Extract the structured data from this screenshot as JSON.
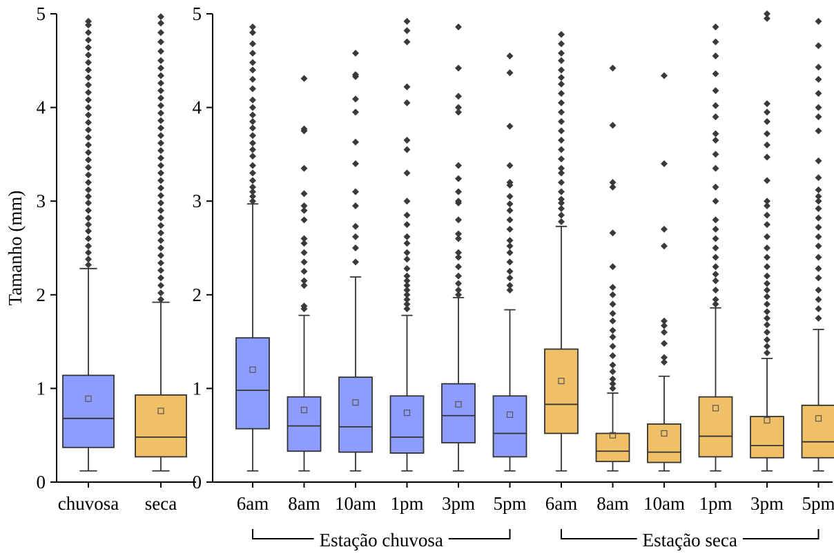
{
  "chart_data": [
    {
      "type": "box",
      "ylabel": "Tamanho (mm)",
      "ylim": [
        0,
        5
      ],
      "yticks": [
        0,
        1,
        2,
        3,
        4,
        5
      ],
      "categories": [
        "chuvosa",
        "seca"
      ],
      "boxes": [
        {
          "label": "chuvosa",
          "color": "#8c9cff",
          "whisker_low": 0.12,
          "q1": 0.37,
          "median": 0.68,
          "q3": 1.14,
          "whisker_high": 2.28,
          "mean": 0.89,
          "outliers": [
            2.32,
            2.38,
            2.45,
            2.52,
            2.6,
            2.68,
            2.75,
            2.82,
            2.9,
            2.98,
            3.05,
            3.12,
            3.2,
            3.28,
            3.36,
            3.44,
            3.52,
            3.6,
            3.68,
            3.76,
            3.84,
            3.92,
            4.0,
            4.08,
            4.16,
            4.24,
            4.32,
            4.4,
            4.48,
            4.56,
            4.64,
            4.72,
            4.8,
            4.88,
            4.92
          ]
        },
        {
          "label": "seca",
          "color": "#f0c066",
          "whisker_low": 0.12,
          "q1": 0.27,
          "median": 0.48,
          "q3": 0.93,
          "whisker_high": 1.92,
          "mean": 0.76,
          "outliers": [
            1.95,
            2.02,
            2.1,
            2.18,
            2.26,
            2.34,
            2.42,
            2.5,
            2.58,
            2.66,
            2.74,
            2.82,
            2.9,
            2.98,
            3.06,
            3.14,
            3.22,
            3.3,
            3.38,
            3.46,
            3.54,
            3.62,
            3.7,
            3.78,
            3.86,
            3.94,
            4.02,
            4.1,
            4.18,
            4.26,
            4.34,
            4.42,
            4.5,
            4.6,
            4.7,
            4.8,
            4.9,
            4.97
          ]
        }
      ]
    },
    {
      "type": "box",
      "ylim": [
        0,
        5
      ],
      "yticks": [
        0,
        1,
        2,
        3,
        4,
        5
      ],
      "categories": [
        "6am",
        "8am",
        "10am",
        "1pm",
        "3pm",
        "5pm",
        "6am",
        "8am",
        "10am",
        "1pm",
        "3pm",
        "5pm"
      ],
      "groups": [
        {
          "label": "Estação chuvosa",
          "from": 0,
          "to": 5
        },
        {
          "label": "Estação seca",
          "from": 6,
          "to": 11
        }
      ],
      "boxes": [
        {
          "label": "6am",
          "color": "#8c9cff",
          "whisker_low": 0.12,
          "q1": 0.57,
          "median": 0.98,
          "q3": 1.54,
          "whisker_high": 2.97,
          "mean": 1.2,
          "outliers": [
            3.0,
            3.05,
            3.1,
            3.15,
            3.22,
            3.3,
            3.38,
            3.48,
            3.55,
            3.62,
            3.7,
            3.78,
            3.85,
            3.92,
            4.0,
            4.08,
            4.2,
            4.3,
            4.4,
            4.48,
            4.58,
            4.68,
            4.8,
            4.86
          ]
        },
        {
          "label": "8am",
          "color": "#8c9cff",
          "whisker_low": 0.12,
          "q1": 0.33,
          "median": 0.6,
          "q3": 0.91,
          "whisker_high": 1.78,
          "mean": 0.77,
          "outliers": [
            1.85,
            1.88,
            2.1,
            2.15,
            2.25,
            2.35,
            2.45,
            2.55,
            2.6,
            2.8,
            2.9,
            2.95,
            3.08,
            3.35,
            3.75,
            3.77,
            4.31
          ]
        },
        {
          "label": "10am",
          "color": "#8c9cff",
          "whisker_low": 0.12,
          "q1": 0.32,
          "median": 0.59,
          "q3": 1.12,
          "whisker_high": 2.19,
          "mean": 0.85,
          "outliers": [
            2.35,
            2.5,
            2.62,
            2.73,
            2.95,
            3.1,
            3.4,
            3.63,
            3.95,
            4.09,
            4.33,
            4.35,
            4.58
          ]
        },
        {
          "label": "1pm",
          "color": "#8c9cff",
          "whisker_low": 0.12,
          "q1": 0.31,
          "median": 0.48,
          "q3": 0.92,
          "whisker_high": 1.78,
          "mean": 0.74,
          "outliers": [
            1.85,
            1.9,
            1.95,
            2.0,
            2.05,
            2.1,
            2.15,
            2.2,
            2.28,
            2.38,
            2.45,
            2.55,
            2.62,
            2.75,
            2.85,
            3.0,
            3.3,
            3.55,
            3.65,
            4.05,
            4.22,
            4.7,
            4.82,
            4.92
          ]
        },
        {
          "label": "3pm",
          "color": "#8c9cff",
          "whisker_low": 0.12,
          "q1": 0.42,
          "median": 0.71,
          "q3": 1.05,
          "whisker_high": 1.97,
          "mean": 0.83,
          "outliers": [
            2.0,
            2.05,
            2.12,
            2.2,
            2.3,
            2.4,
            2.45,
            2.6,
            2.65,
            2.8,
            2.98,
            3.0,
            3.1,
            3.24,
            3.38,
            3.95,
            4.0,
            4.12,
            4.42,
            4.86
          ]
        },
        {
          "label": "5pm",
          "color": "#8c9cff",
          "whisker_low": 0.12,
          "q1": 0.27,
          "median": 0.52,
          "q3": 0.92,
          "whisker_high": 1.84,
          "mean": 0.72,
          "outliers": [
            2.05,
            2.1,
            2.18,
            2.25,
            2.35,
            2.45,
            2.52,
            2.58,
            2.7,
            2.8,
            2.9,
            2.97,
            3.05,
            3.17,
            3.2,
            3.38,
            3.8,
            4.37,
            4.55
          ]
        },
        {
          "label": "6am",
          "color": "#f0c066",
          "whisker_low": 0.12,
          "q1": 0.52,
          "median": 0.83,
          "q3": 1.42,
          "whisker_high": 2.73,
          "mean": 1.08,
          "outliers": [
            2.78,
            2.85,
            2.92,
            2.98,
            3.02,
            3.1,
            3.2,
            3.3,
            3.35,
            3.45,
            3.55,
            3.65,
            3.75,
            3.85,
            3.95,
            4.05,
            4.15,
            4.25,
            4.32,
            4.4,
            4.5,
            4.58,
            4.68,
            4.78
          ]
        },
        {
          "label": "8am",
          "color": "#f0c066",
          "whisker_low": 0.12,
          "q1": 0.22,
          "median": 0.33,
          "q3": 0.52,
          "whisker_high": 0.95,
          "mean": 0.5,
          "outliers": [
            1.0,
            1.05,
            1.1,
            1.18,
            1.25,
            1.35,
            1.45,
            1.55,
            1.62,
            1.72,
            1.8,
            1.9,
            2.0,
            2.08,
            2.3,
            2.66,
            3.15,
            3.2,
            3.81,
            4.42
          ]
        },
        {
          "label": "10am",
          "color": "#f0c066",
          "whisker_low": 0.12,
          "q1": 0.21,
          "median": 0.32,
          "q3": 0.62,
          "whisker_high": 1.13,
          "mean": 0.52,
          "outliers": [
            1.28,
            1.33,
            1.48,
            1.6,
            1.67,
            1.72,
            2.52,
            2.7,
            3.4,
            4.34
          ]
        },
        {
          "label": "1pm",
          "color": "#f0c066",
          "whisker_low": 0.12,
          "q1": 0.27,
          "median": 0.49,
          "q3": 0.91,
          "whisker_high": 1.86,
          "mean": 0.79,
          "outliers": [
            1.9,
            1.95,
            2.05,
            2.15,
            2.22,
            2.3,
            2.4,
            2.5,
            2.6,
            2.7,
            2.8,
            3.0,
            3.15,
            3.35,
            3.5,
            3.65,
            3.72,
            3.9,
            4.02,
            4.18,
            4.36,
            4.55,
            4.7,
            4.86
          ]
        },
        {
          "label": "3pm",
          "color": "#f0c066",
          "whisker_low": 0.12,
          "q1": 0.26,
          "median": 0.39,
          "q3": 0.7,
          "whisker_high": 1.32,
          "mean": 0.66,
          "outliers": [
            1.38,
            1.45,
            1.52,
            1.6,
            1.68,
            1.75,
            1.82,
            1.9,
            1.98,
            2.05,
            2.12,
            2.2,
            2.3,
            2.4,
            2.5,
            2.62,
            2.75,
            2.85,
            2.95,
            3.0,
            3.22,
            3.47,
            3.6,
            3.72,
            3.85,
            3.95,
            4.04,
            4.95,
            5.0
          ]
        },
        {
          "label": "5pm",
          "color": "#f0c066",
          "whisker_low": 0.12,
          "q1": 0.26,
          "median": 0.43,
          "q3": 0.82,
          "whisker_high": 1.63,
          "mean": 0.68,
          "outliers": [
            1.75,
            1.85,
            1.95,
            2.05,
            2.18,
            2.28,
            2.4,
            2.52,
            2.62,
            2.72,
            2.82,
            2.92,
            3.0,
            3.05,
            3.12,
            3.25,
            3.43,
            3.75,
            3.9,
            4.0,
            4.15,
            4.3,
            4.43,
            4.66,
            4.92
          ]
        }
      ]
    }
  ]
}
